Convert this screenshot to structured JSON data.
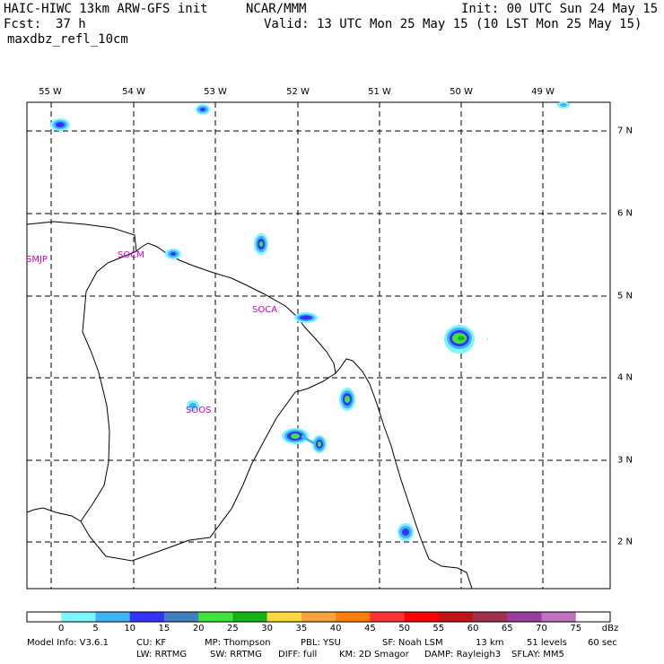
{
  "header": {
    "title": "HAIC-HIWC 13km ARW-GFS init",
    "org": "NCAR/MMM",
    "init": "Init: 00 UTC Sun 24 May 15",
    "fcst_label": "Fcst:",
    "fcst_value": "37 h",
    "valid": "Valid: 13 UTC Mon 25 May 15 (10 LST Mon 25 May 15)",
    "field": "maxdbz_refl_10cm"
  },
  "map": {
    "longitude_labels": [
      "55 W",
      "54 W",
      "53 W",
      "52 W",
      "51 W",
      "50 W",
      "49 W"
    ],
    "latitude_labels": [
      "7 N",
      "6 N",
      "5 N",
      "4 N",
      "3 N",
      "2 N"
    ],
    "stations": [
      {
        "id": "SMJP"
      },
      {
        "id": "SOCM"
      },
      {
        "id": "SOCA"
      },
      {
        "id": "SOOS"
      }
    ]
  },
  "colorbar": {
    "unit": "dBz",
    "ticks": [
      "0",
      "5",
      "10",
      "15",
      "20",
      "25",
      "30",
      "35",
      "40",
      "45",
      "50",
      "55",
      "60",
      "65",
      "70",
      "75"
    ],
    "colors": [
      "#ffffff",
      "#7ff4ff",
      "#3fb4f4",
      "#3434ff",
      "#3f7fbf",
      "#3fe43f",
      "#14b414",
      "#ffd93f",
      "#ffa33f",
      "#ff7f00",
      "#ff3333",
      "#ff0000",
      "#c21414",
      "#a0304d",
      "#9b3f9f",
      "#bf72bf",
      "#ffffff"
    ]
  },
  "model_info": {
    "line1": [
      "Model Info: V3.6.1",
      "CU: KF",
      "MP: Thompson",
      "PBL: YSU",
      "SF: Noah LSM",
      "13 km",
      "51 levels",
      "60 sec"
    ],
    "line2": [
      "LW: RRTMG",
      "SW: RRTMG",
      "DIFF: full",
      "KM: 2D Smagor",
      "DAMP: Rayleigh3",
      "SFLAY: MM5"
    ]
  }
}
